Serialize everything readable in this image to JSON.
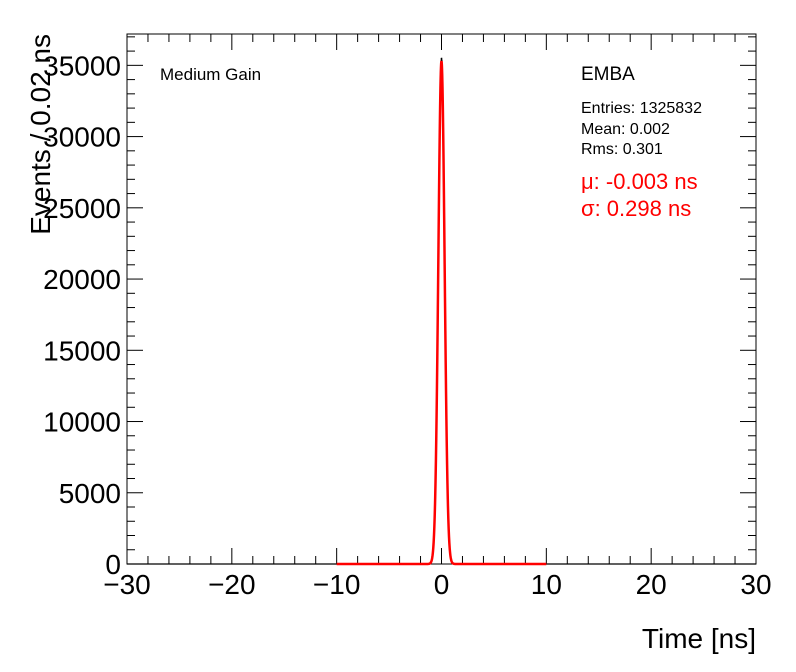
{
  "chart_data": {
    "type": "line",
    "title": "",
    "xlabel": "Time [ns]",
    "ylabel": "Events / 0.02 ns",
    "xlim": [
      -30,
      30
    ],
    "ylim": [
      0,
      37200
    ],
    "xticks": [
      -30,
      -20,
      -10,
      0,
      10,
      20,
      30
    ],
    "xtick_labels": [
      "−30",
      "−20",
      "−10",
      "0",
      "10",
      "20",
      "30"
    ],
    "yticks": [
      0,
      5000,
      10000,
      15000,
      20000,
      25000,
      30000,
      35000
    ],
    "ytick_labels": [
      "0",
      "5000",
      "10000",
      "15000",
      "20000",
      "25000",
      "30000",
      "35000"
    ],
    "annotations": {
      "gain_label": "Medium Gain",
      "partition": "EMBA",
      "entries": "Entries: 1325832",
      "mean": "Mean: 0.002",
      "rms": "Rms: 0.301",
      "fit_mu": "μ: -0.003 ns",
      "fit_sigma": "σ: 0.298 ns"
    },
    "series": [
      {
        "kind": "histogram",
        "color": "#000000",
        "entries": 1325832,
        "mean": 0.002,
        "rms": 0.301,
        "bin_width": 0.02,
        "peak": 35500
      },
      {
        "kind": "gaussian-fit",
        "color": "#ff0000",
        "mu": -0.003,
        "sigma": 0.298,
        "amplitude": 35300,
        "range": [
          -10,
          10
        ]
      }
    ]
  }
}
